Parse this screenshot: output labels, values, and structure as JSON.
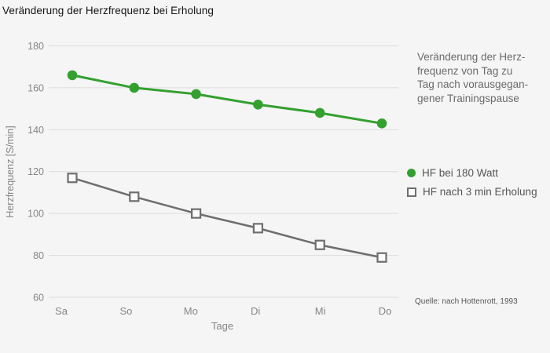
{
  "title": "Veränderung der Herzfrequenz bei Erholung",
  "annotation": {
    "text": "Veränderung der Herz-\nfrequenz von Tag zu\nTag nach vorausgegan-\ngener Trainingspause"
  },
  "legend": {
    "items": [
      {
        "label": "HF bei 180 Watt",
        "marker": "circle",
        "color": "#34a02f"
      },
      {
        "label": "HF nach 3 min Erholung",
        "marker": "square-open",
        "color": "#6e6e6e"
      }
    ]
  },
  "source": "Quelle: nach Hottenrott, 1993",
  "colors": {
    "background": "#f5f5f6",
    "gridline": "#dcdcdc",
    "axis_text": "#858585",
    "title_text": "#141414",
    "annotation_text": "#6b6b6b",
    "legend_text": "#565656",
    "series_green": "#34a02f",
    "series_gray": "#6e6e6e",
    "marker_fill": "#fafafa"
  },
  "chart_data": {
    "type": "line",
    "categories": [
      "Sa",
      "So",
      "Mo",
      "Di",
      "Mi",
      "Do"
    ],
    "series": [
      {
        "name": "HF bei 180 Watt",
        "values": [
          166,
          160,
          157,
          152,
          148,
          143
        ],
        "color": "#34a02f",
        "marker": "circle",
        "line_width": 3
      },
      {
        "name": "HF nach 3 min Erholung",
        "values": [
          117,
          108,
          100,
          93,
          85,
          79
        ],
        "color": "#6e6e6e",
        "marker": "square-open",
        "line_width": 2.5
      }
    ],
    "title": "Veränderung der Herzfrequenz bei Erholung",
    "xlabel": "Tage",
    "ylabel": "Herzfrequenz [S/min]",
    "ylim": [
      60,
      180
    ],
    "ytick_step": 20,
    "grid": "horizontal",
    "legend_position": "right"
  }
}
